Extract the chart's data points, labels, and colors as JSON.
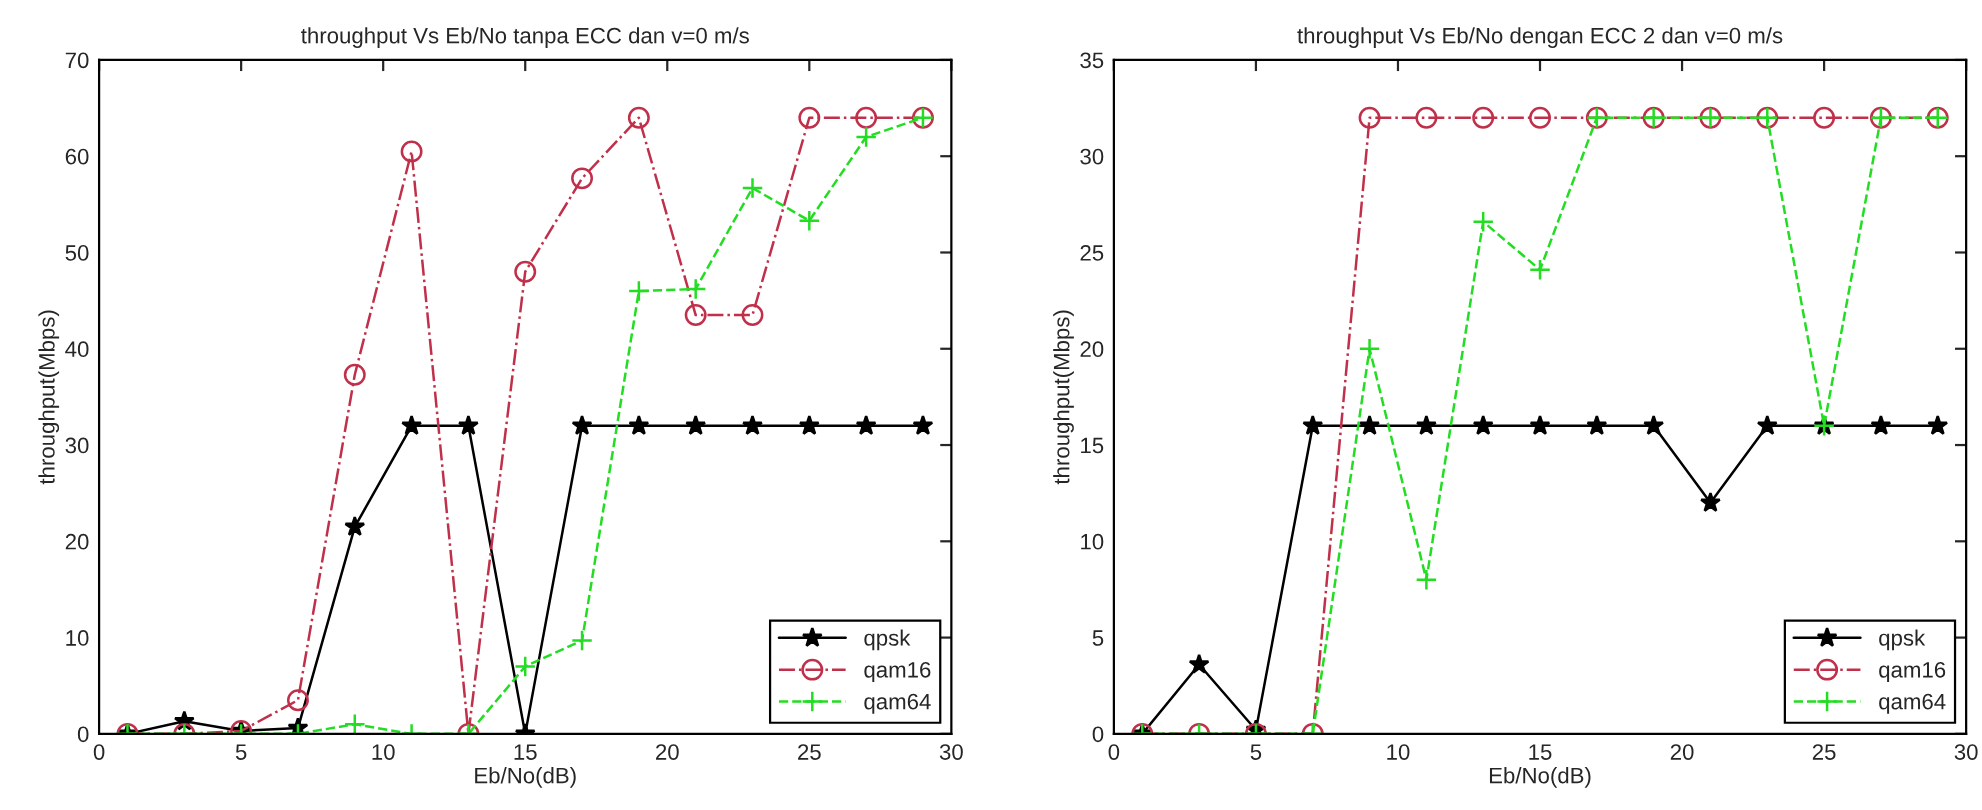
{
  "chart_data": [
    {
      "type": "line",
      "title": "throughput Vs Eb/No tanpa ECC dan v=0 m/s",
      "xlabel": "Eb/No(dB)",
      "ylabel": "throughput(Mbps)",
      "x": [
        1,
        3,
        5,
        7,
        9,
        11,
        13,
        15,
        17,
        19,
        21,
        23,
        25,
        27,
        29
      ],
      "series": [
        {
          "name": "qpsk",
          "color": "#000000",
          "marker": "star",
          "line_style": "solid",
          "values": [
            0,
            1.3,
            0.3,
            0.6,
            21.5,
            32,
            32,
            0,
            32,
            32,
            32,
            32,
            32,
            32,
            32
          ]
        },
        {
          "name": "qam16",
          "color": "#c0304a",
          "marker": "circle",
          "line_style": "dashdot",
          "values": [
            0,
            0,
            0.3,
            3.5,
            37.3,
            60.5,
            0,
            48,
            57.7,
            64,
            43.5,
            43.5,
            64,
            64,
            64
          ]
        },
        {
          "name": "qam64",
          "color": "#22dd22",
          "marker": "cross",
          "line_style": "dashed",
          "values": [
            0,
            0,
            0,
            0,
            1,
            0,
            0,
            7,
            9.7,
            46,
            46.2,
            56.7,
            53.3,
            62,
            64
          ]
        }
      ],
      "xlim": [
        0,
        30
      ],
      "xticks": [
        0,
        5,
        10,
        15,
        20,
        25,
        30
      ],
      "ylim": [
        0,
        70
      ],
      "yticks": [
        0,
        10,
        20,
        30,
        40,
        50,
        60,
        70
      ],
      "grid": false,
      "legend": "bottom right"
    },
    {
      "type": "line",
      "title": "throughput Vs Eb/No dengan ECC 2 dan v=0 m/s",
      "xlabel": "Eb/No(dB)",
      "ylabel": "throughput(Mbps)",
      "x": [
        1,
        3,
        5,
        7,
        9,
        11,
        13,
        15,
        17,
        19,
        21,
        23,
        25,
        27,
        29
      ],
      "series": [
        {
          "name": "qpsk",
          "color": "#000000",
          "marker": "star",
          "line_style": "solid",
          "values": [
            0,
            3.6,
            0.2,
            16,
            16,
            16,
            16,
            16,
            16,
            16,
            12,
            16,
            16,
            16,
            16
          ]
        },
        {
          "name": "qam16",
          "color": "#c0304a",
          "marker": "circle",
          "line_style": "dashdot",
          "values": [
            0,
            0,
            0,
            0,
            32,
            32,
            32,
            32,
            32,
            32,
            32,
            32,
            32,
            32,
            32
          ]
        },
        {
          "name": "qam64",
          "color": "#22dd22",
          "marker": "cross",
          "line_style": "dashed",
          "values": [
            0,
            0,
            0,
            0,
            20,
            8,
            26.6,
            24.1,
            32,
            32,
            32,
            32,
            16,
            32,
            32
          ]
        }
      ],
      "xlim": [
        0,
        30
      ],
      "xticks": [
        0,
        5,
        10,
        15,
        20,
        25,
        30
      ],
      "ylim": [
        0,
        35
      ],
      "yticks": [
        0,
        5,
        10,
        15,
        20,
        25,
        30,
        35
      ],
      "grid": false,
      "legend": "bottom right"
    }
  ]
}
